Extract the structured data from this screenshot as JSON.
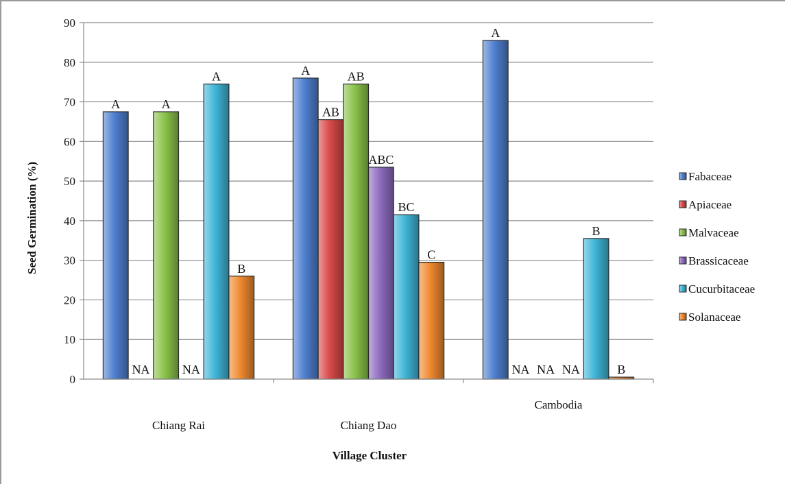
{
  "chart_data": {
    "type": "bar",
    "title": "",
    "xlabel": "Village Cluster",
    "ylabel": "Seed Germination (%)",
    "ylim": [
      0,
      90
    ],
    "yticks": [
      0,
      10,
      20,
      30,
      40,
      50,
      60,
      70,
      80,
      90
    ],
    "grid": true,
    "legend_position": "right",
    "categories": [
      "Chiang Rai",
      "Chiang Dao",
      "Cambodia"
    ],
    "series": [
      {
        "name": "Fabaceae",
        "color": "#4f7fd0",
        "values": [
          67.5,
          76,
          85.5
        ],
        "labels": [
          "A",
          "A",
          "A"
        ]
      },
      {
        "name": "Apiaceae",
        "color": "#d94a4a",
        "values": [
          0,
          65.5,
          0
        ],
        "labels": [
          "NA",
          "AB",
          "NA"
        ]
      },
      {
        "name": "Malvaceae",
        "color": "#8bc34a",
        "values": [
          67.5,
          74.5,
          0
        ],
        "labels": [
          "A",
          "AB",
          "NA"
        ]
      },
      {
        "name": "Brassicaceae",
        "color": "#8e6cc0",
        "values": [
          0,
          53.5,
          0
        ],
        "labels": [
          "NA",
          "ABC",
          "NA"
        ]
      },
      {
        "name": "Cucurbitaceae",
        "color": "#3fb6d8",
        "values": [
          74.5,
          41.5,
          35.5
        ],
        "labels": [
          "A",
          "BC",
          "B"
        ]
      },
      {
        "name": "Solanaceae",
        "color": "#f08a30",
        "values": [
          26,
          29.5,
          0.5
        ],
        "labels": [
          "B",
          "C",
          "B"
        ]
      }
    ]
  }
}
